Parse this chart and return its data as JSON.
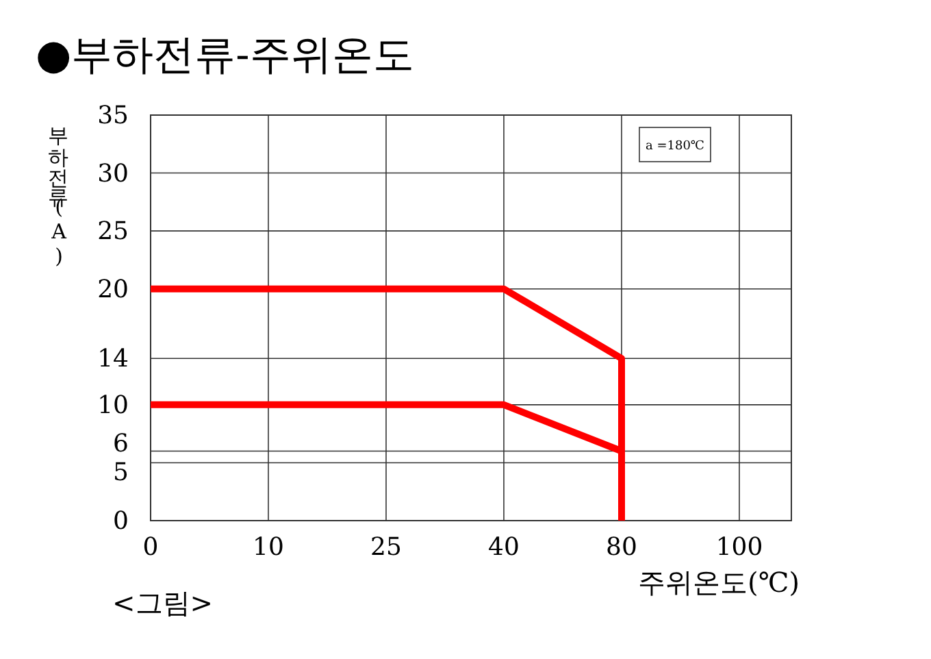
{
  "chart_data": {
    "type": "line",
    "title": "●부하전류-주위온도",
    "xlabel": "주위온도(℃)",
    "ylabel": "부하전류(A)",
    "categories": [
      "0",
      "10",
      "25",
      "40",
      "80",
      "100"
    ],
    "ylim": [
      0,
      35
    ],
    "yticks": [
      0,
      5,
      6,
      10,
      14,
      20,
      25,
      30,
      35
    ],
    "grid": true,
    "marker": "none",
    "line_style": "solid",
    "series": [
      {
        "color": "#ff0000",
        "x": [
          "0",
          "40",
          "80",
          "80"
        ],
        "values": [
          20,
          20,
          14,
          0
        ]
      },
      {
        "color": "#ff0000",
        "x": [
          "0",
          "40",
          "80"
        ],
        "values": [
          10,
          10,
          6
        ]
      }
    ],
    "annotations": [
      "a =180℃",
      "<그림>"
    ]
  }
}
